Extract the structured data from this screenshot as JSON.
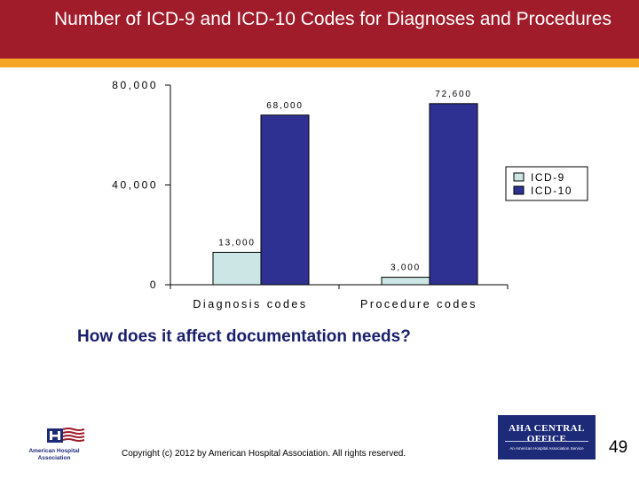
{
  "slide": {
    "title": "Number of ICD-9 and ICD-10 Codes for Diagnoses and Procedures",
    "subtitle": "How does it affect documentation needs?",
    "copyright": "Copyright (c) 2012 by American Hospital Association. All rights reserved.",
    "page_number": "49",
    "colors": {
      "header": "#a01c2b",
      "accent": "#f5a623",
      "subtitle": "#1a1f6b"
    }
  },
  "logos": {
    "aha": {
      "text": "American Hospital Association",
      "icon": "h-flag-logo-icon"
    },
    "central_office": {
      "line1": "AHA CENTRAL OFFICE",
      "line2": "An American Hospital Association Service"
    }
  },
  "chart_data": {
    "type": "bar",
    "categories": [
      "Diagnosis codes",
      "Procedure codes"
    ],
    "series": [
      {
        "name": "ICD-9",
        "values": [
          13000,
          3000
        ],
        "labels": [
          "13,000",
          "3,000"
        ],
        "color": "#cce5e5"
      },
      {
        "name": "ICD-10",
        "values": [
          68000,
          72600
        ],
        "labels": [
          "68,000",
          "72,600"
        ],
        "color": "#2e3192"
      }
    ],
    "y_ticks": [
      0,
      40000,
      80000
    ],
    "y_tick_labels": [
      "0",
      "40,000",
      "80,000"
    ],
    "ylim": [
      0,
      80000
    ],
    "legend_position": "right",
    "grid": false
  }
}
